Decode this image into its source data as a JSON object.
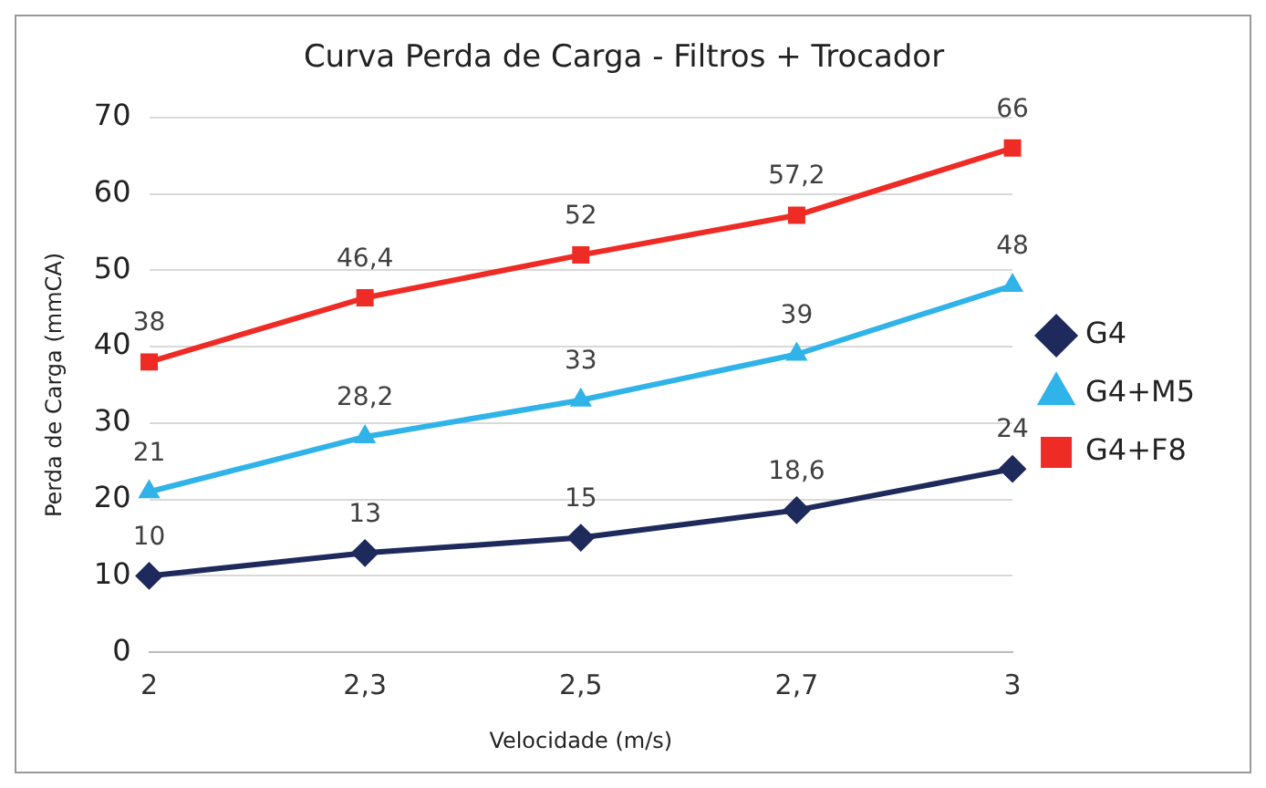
{
  "chart_data": {
    "type": "line",
    "title": "Curva Perda de Carga - Filtros + Trocador",
    "xlabel": "Velocidade (m/s)",
    "ylabel": "Perda de Carga (mmCA)",
    "categories": [
      "2",
      "2,3",
      "2,5",
      "2,7",
      "3"
    ],
    "ylim": [
      0,
      70
    ],
    "yticks": [
      0,
      10,
      20,
      30,
      40,
      50,
      60,
      70
    ],
    "grid": "y",
    "legend": "right",
    "series": [
      {
        "name": "G4",
        "color": "#1f2a5c",
        "marker": "diamond",
        "values": [
          10,
          13,
          15,
          18.6,
          24
        ],
        "value_labels": [
          "10",
          "13",
          "15",
          "18,6",
          "24"
        ]
      },
      {
        "name": "G4+M5",
        "color": "#2fb3e8",
        "marker": "triangle",
        "values": [
          21,
          28.2,
          33,
          39,
          48
        ],
        "value_labels": [
          "21",
          "28,2",
          "33",
          "39",
          "48"
        ]
      },
      {
        "name": "G4+F8",
        "color": "#ee2b24",
        "marker": "square",
        "values": [
          38,
          46.4,
          52,
          57.2,
          66
        ],
        "value_labels": [
          "38",
          "46,4",
          "52",
          "57,2",
          "66"
        ]
      }
    ]
  }
}
